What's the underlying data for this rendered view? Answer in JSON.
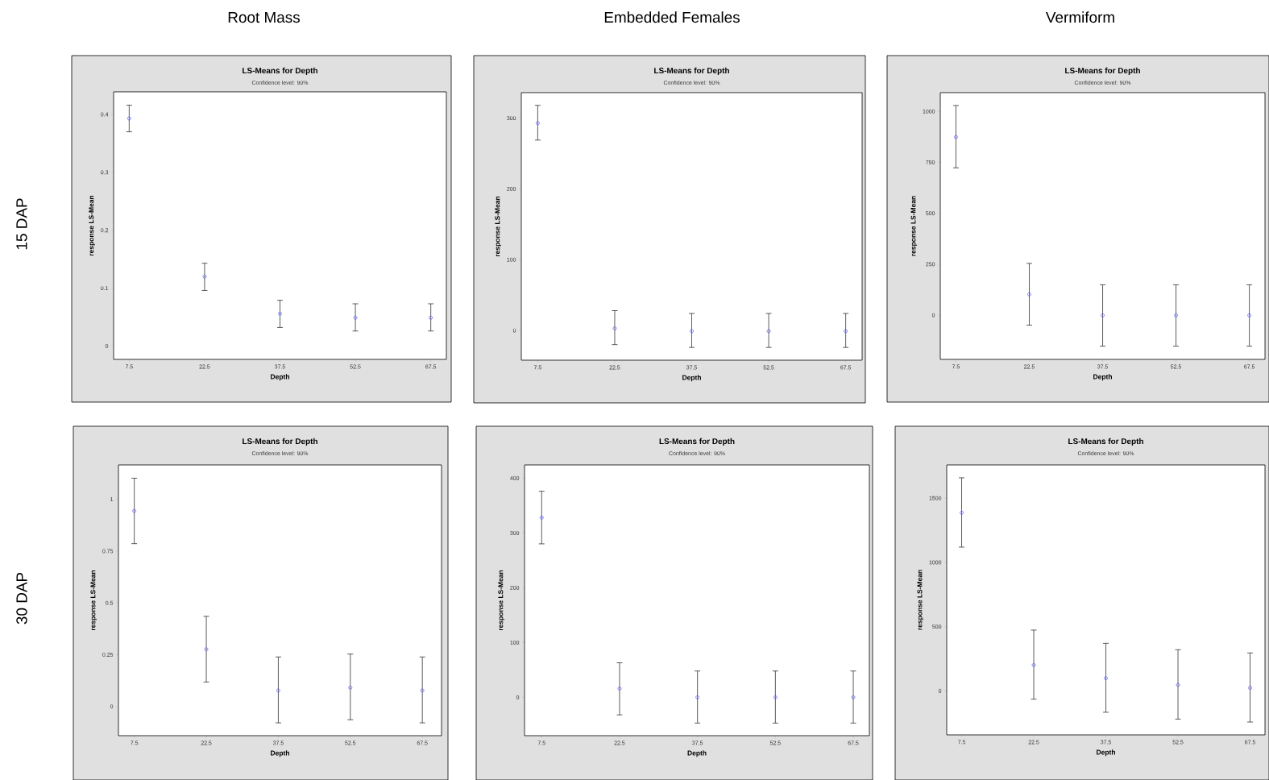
{
  "chart_data": [
    {
      "type": "scatter",
      "title": "LS-Means for Depth",
      "subtitle": "Confidence level: 90%",
      "xlabel": "Depth",
      "ylabel": "response LS-Mean",
      "annotations": [
        "Root Mass",
        "15 DAP"
      ],
      "x": [
        7.5,
        22.5,
        37.5,
        52.5,
        67.5
      ],
      "values": [
        0.393,
        0.12,
        0.056,
        0.049,
        0.049
      ],
      "errors": [
        [
          0.37,
          0.416
        ],
        [
          0.096,
          0.143
        ],
        [
          0.032,
          0.079
        ],
        [
          0.026,
          0.073
        ],
        [
          0.026,
          0.073
        ]
      ],
      "color": "#5a5aff",
      "marker": "circle",
      "xlim": [
        4.4,
        70.6
      ],
      "ylim": [
        -0.023,
        0.439
      ],
      "xticks": [
        7.5,
        22.5,
        37.5,
        52.5,
        67.5
      ],
      "yticks": [
        0,
        0.1,
        0.2,
        0.3,
        0.4
      ]
    },
    {
      "type": "scatter",
      "title": "LS-Means for Depth",
      "subtitle": "Confidence level: 90%",
      "xlabel": "Depth",
      "ylabel": "response LS-Mean",
      "annotations": [
        "Embedded Females"
      ],
      "x": [
        7.5,
        22.5,
        37.5,
        52.5,
        67.5
      ],
      "values": [
        293,
        3,
        -1,
        -1,
        -1
      ],
      "errors": [
        [
          269,
          318
        ],
        [
          -20,
          28
        ],
        [
          -24,
          24
        ],
        [
          -24,
          24
        ],
        [
          -24,
          24
        ]
      ],
      "color": "#5a5aff",
      "marker": "circle",
      "xlim": [
        4.3,
        70.7
      ],
      "ylim": [
        -42,
        336
      ],
      "xticks": [
        7.5,
        22.5,
        37.5,
        52.5,
        67.5
      ],
      "yticks": [
        0,
        100,
        200,
        300
      ]
    },
    {
      "type": "scatter",
      "title": "LS-Means for Depth",
      "subtitle": "Confidence level: 90%",
      "xlabel": "Depth",
      "ylabel": "response LS-Mean",
      "annotations": [
        "Vermiform"
      ],
      "x": [
        7.5,
        22.5,
        37.5,
        52.5,
        67.5
      ],
      "values": [
        874,
        102,
        -1,
        -1,
        -1
      ],
      "errors": [
        [
          723,
          1029
        ],
        [
          -49,
          254
        ],
        [
          -152,
          149
        ],
        [
          -152,
          149
        ],
        [
          -152,
          149
        ]
      ],
      "color": "#5a5aff",
      "marker": "circle",
      "xlim": [
        4.3,
        70.7
      ],
      "ylim": [
        -217,
        1092
      ],
      "xticks": [
        7.5,
        22.5,
        37.5,
        52.5,
        67.5
      ],
      "yticks": [
        0,
        250,
        500,
        750,
        1000
      ]
    },
    {
      "type": "scatter",
      "title": "LS-Means for Depth",
      "subtitle": "Confidence level: 90%",
      "xlabel": "Depth",
      "ylabel": "response LS-Mean",
      "annotations": [
        "30 DAP"
      ],
      "x": [
        7.5,
        22.5,
        37.5,
        52.5,
        67.5
      ],
      "values": [
        0.944,
        0.276,
        0.077,
        0.091,
        0.077
      ],
      "errors": [
        [
          0.786,
          1.102
        ],
        [
          0.118,
          0.435
        ],
        [
          -0.079,
          0.239
        ],
        [
          -0.064,
          0.253
        ],
        [
          -0.079,
          0.239
        ]
      ],
      "color": "#5a5aff",
      "marker": "circle",
      "xlim": [
        4.2,
        71.5
      ],
      "ylim": [
        -0.141,
        1.166
      ],
      "xticks": [
        7.5,
        22.5,
        37.5,
        52.5,
        67.5
      ],
      "yticks": [
        0,
        0.25,
        0.5,
        0.75,
        1
      ]
    },
    {
      "type": "scatter",
      "title": "LS-Means for Depth",
      "subtitle": "Confidence level: 90%",
      "xlabel": "Depth",
      "ylabel": "response LS-Mean",
      "x": [
        7.5,
        22.5,
        37.5,
        52.5,
        67.5
      ],
      "values": [
        328,
        16,
        0,
        0,
        0
      ],
      "errors": [
        [
          280,
          376
        ],
        [
          -32,
          63
        ],
        [
          -47,
          48
        ],
        [
          -47,
          48
        ],
        [
          -47,
          48
        ]
      ],
      "color": "#5a5aff",
      "marker": "circle",
      "xlim": [
        4.2,
        70.6
      ],
      "ylim": [
        -70,
        424
      ],
      "xticks": [
        7.5,
        22.5,
        37.5,
        52.5,
        67.5
      ],
      "yticks": [
        0,
        100,
        200,
        300,
        400
      ]
    },
    {
      "type": "scatter",
      "title": "LS-Means for Depth",
      "subtitle": "Confidence level: 90%",
      "xlabel": "Depth",
      "ylabel": "response LS-Mean",
      "x": [
        7.5,
        22.5,
        37.5,
        52.5,
        67.5
      ],
      "values": [
        1387,
        201,
        98,
        46,
        23
      ],
      "errors": [
        [
          1119,
          1659
        ],
        [
          -65,
          473
        ],
        [
          -167,
          370
        ],
        [
          -220,
          320
        ],
        [
          -243,
          295
        ]
      ],
      "color": "#5a5aff",
      "marker": "circle",
      "xlim": [
        4.4,
        70.6
      ],
      "ylim": [
        -343,
        1759
      ],
      "xticks": [
        7.5,
        22.5,
        37.5,
        52.5,
        67.5
      ],
      "yticks": [
        0,
        500,
        1000,
        1500
      ]
    }
  ]
}
